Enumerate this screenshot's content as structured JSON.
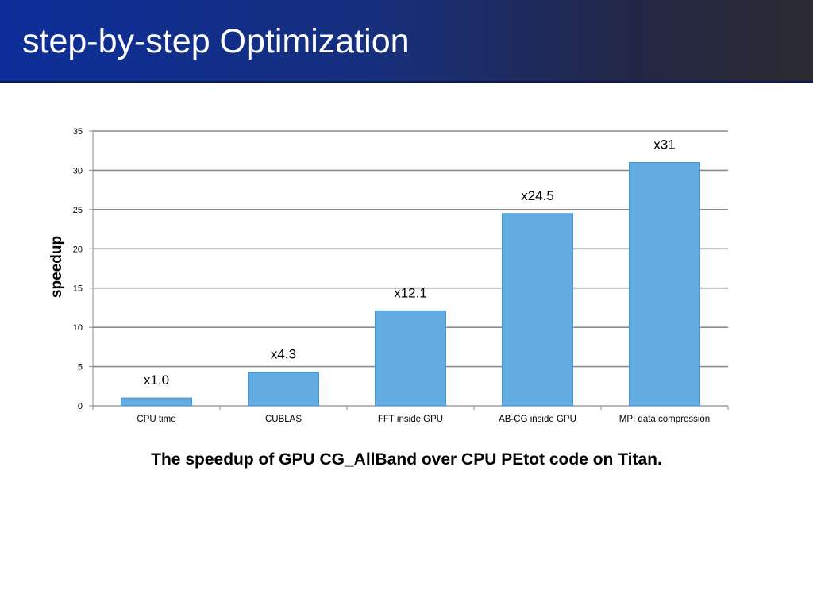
{
  "slide": {
    "title": "step-by-step Optimization",
    "caption": "The speedup of GPU CG_AllBand over CPU PEtot code on Titan."
  },
  "colors": {
    "bar": "#62ace1",
    "bar_stroke": "#4a93cb",
    "grid": "#8c8c8c",
    "title_bar_start": "#0e2f9a",
    "title_bar_end": "#2a2a30"
  },
  "chart_data": {
    "type": "bar",
    "title": "",
    "xlabel": "",
    "ylabel": "speedup",
    "categories": [
      "CPU time",
      "CUBLAS",
      "FFT inside GPU",
      "AB-CG inside GPU",
      "MPI data compression"
    ],
    "values": [
      1.0,
      4.3,
      12.1,
      24.5,
      31
    ],
    "data_labels": [
      "x1.0",
      "x4.3",
      "x12.1",
      "x24.5",
      "x31"
    ],
    "ylim": [
      0,
      35
    ],
    "yticks": [
      0,
      5,
      10,
      15,
      20,
      25,
      30,
      35
    ],
    "grid": true,
    "legend": "none"
  }
}
